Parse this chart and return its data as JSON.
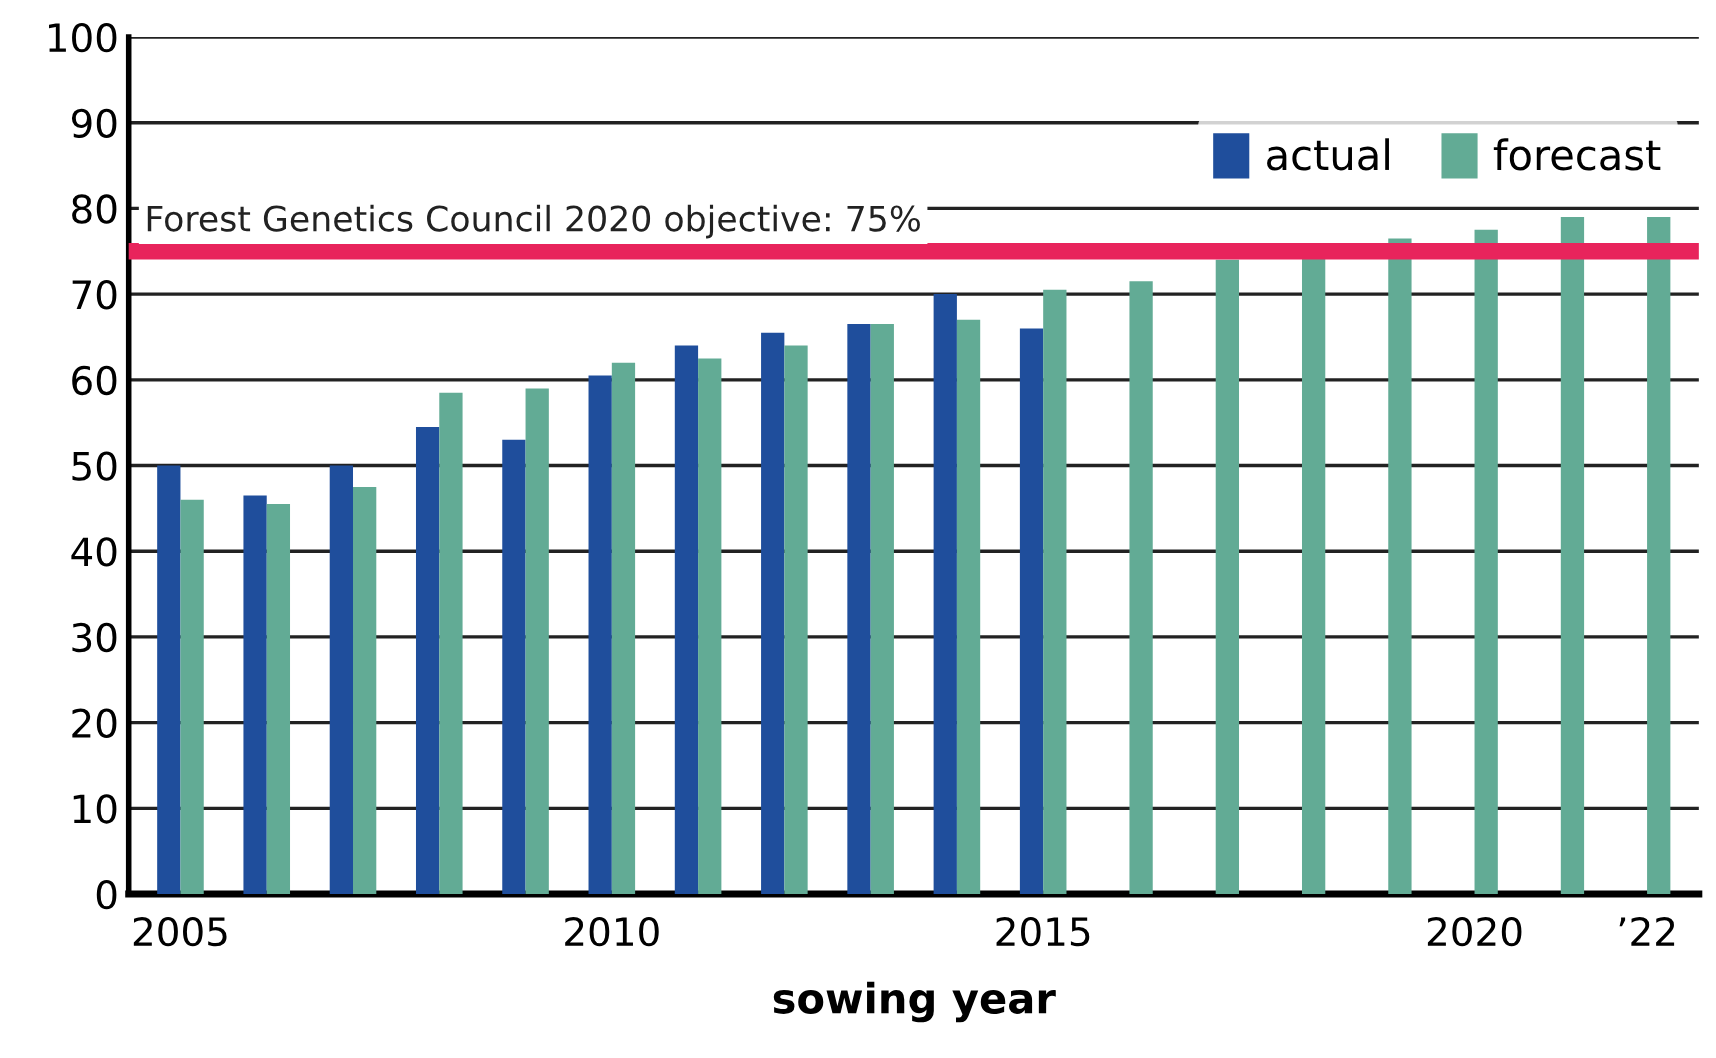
{
  "chart_data": {
    "type": "bar",
    "xlabel": "sowing year",
    "categories": [
      "2005",
      null,
      null,
      null,
      null,
      "2010",
      null,
      null,
      null,
      null,
      "2015",
      null,
      null,
      null,
      null,
      "2020",
      null,
      "’22"
    ],
    "series": [
      {
        "name": "actual",
        "color": "#1f4e9c",
        "values": [
          50,
          46.5,
          50,
          54.5,
          53,
          60.5,
          64,
          65.5,
          66.5,
          70,
          66,
          null,
          null,
          null,
          null,
          null,
          null,
          null
        ]
      },
      {
        "name": "forecast",
        "color": "#62ab95",
        "values": [
          46,
          45.5,
          47.5,
          58.5,
          59,
          62,
          62.5,
          64,
          66.5,
          67,
          70.5,
          71.5,
          74,
          74.5,
          76.5,
          77.5,
          79,
          79
        ]
      }
    ],
    "ylim": [
      0,
      100
    ],
    "yticks": [
      0,
      10,
      20,
      30,
      40,
      50,
      60,
      70,
      80,
      90,
      100
    ],
    "ref_lines": [
      {
        "axis": "y",
        "value": 75,
        "label": "Forest Genetics Council 2020 objective: 75%",
        "color": "#e8245c"
      }
    ],
    "grid": "y",
    "legend": "top right"
  }
}
